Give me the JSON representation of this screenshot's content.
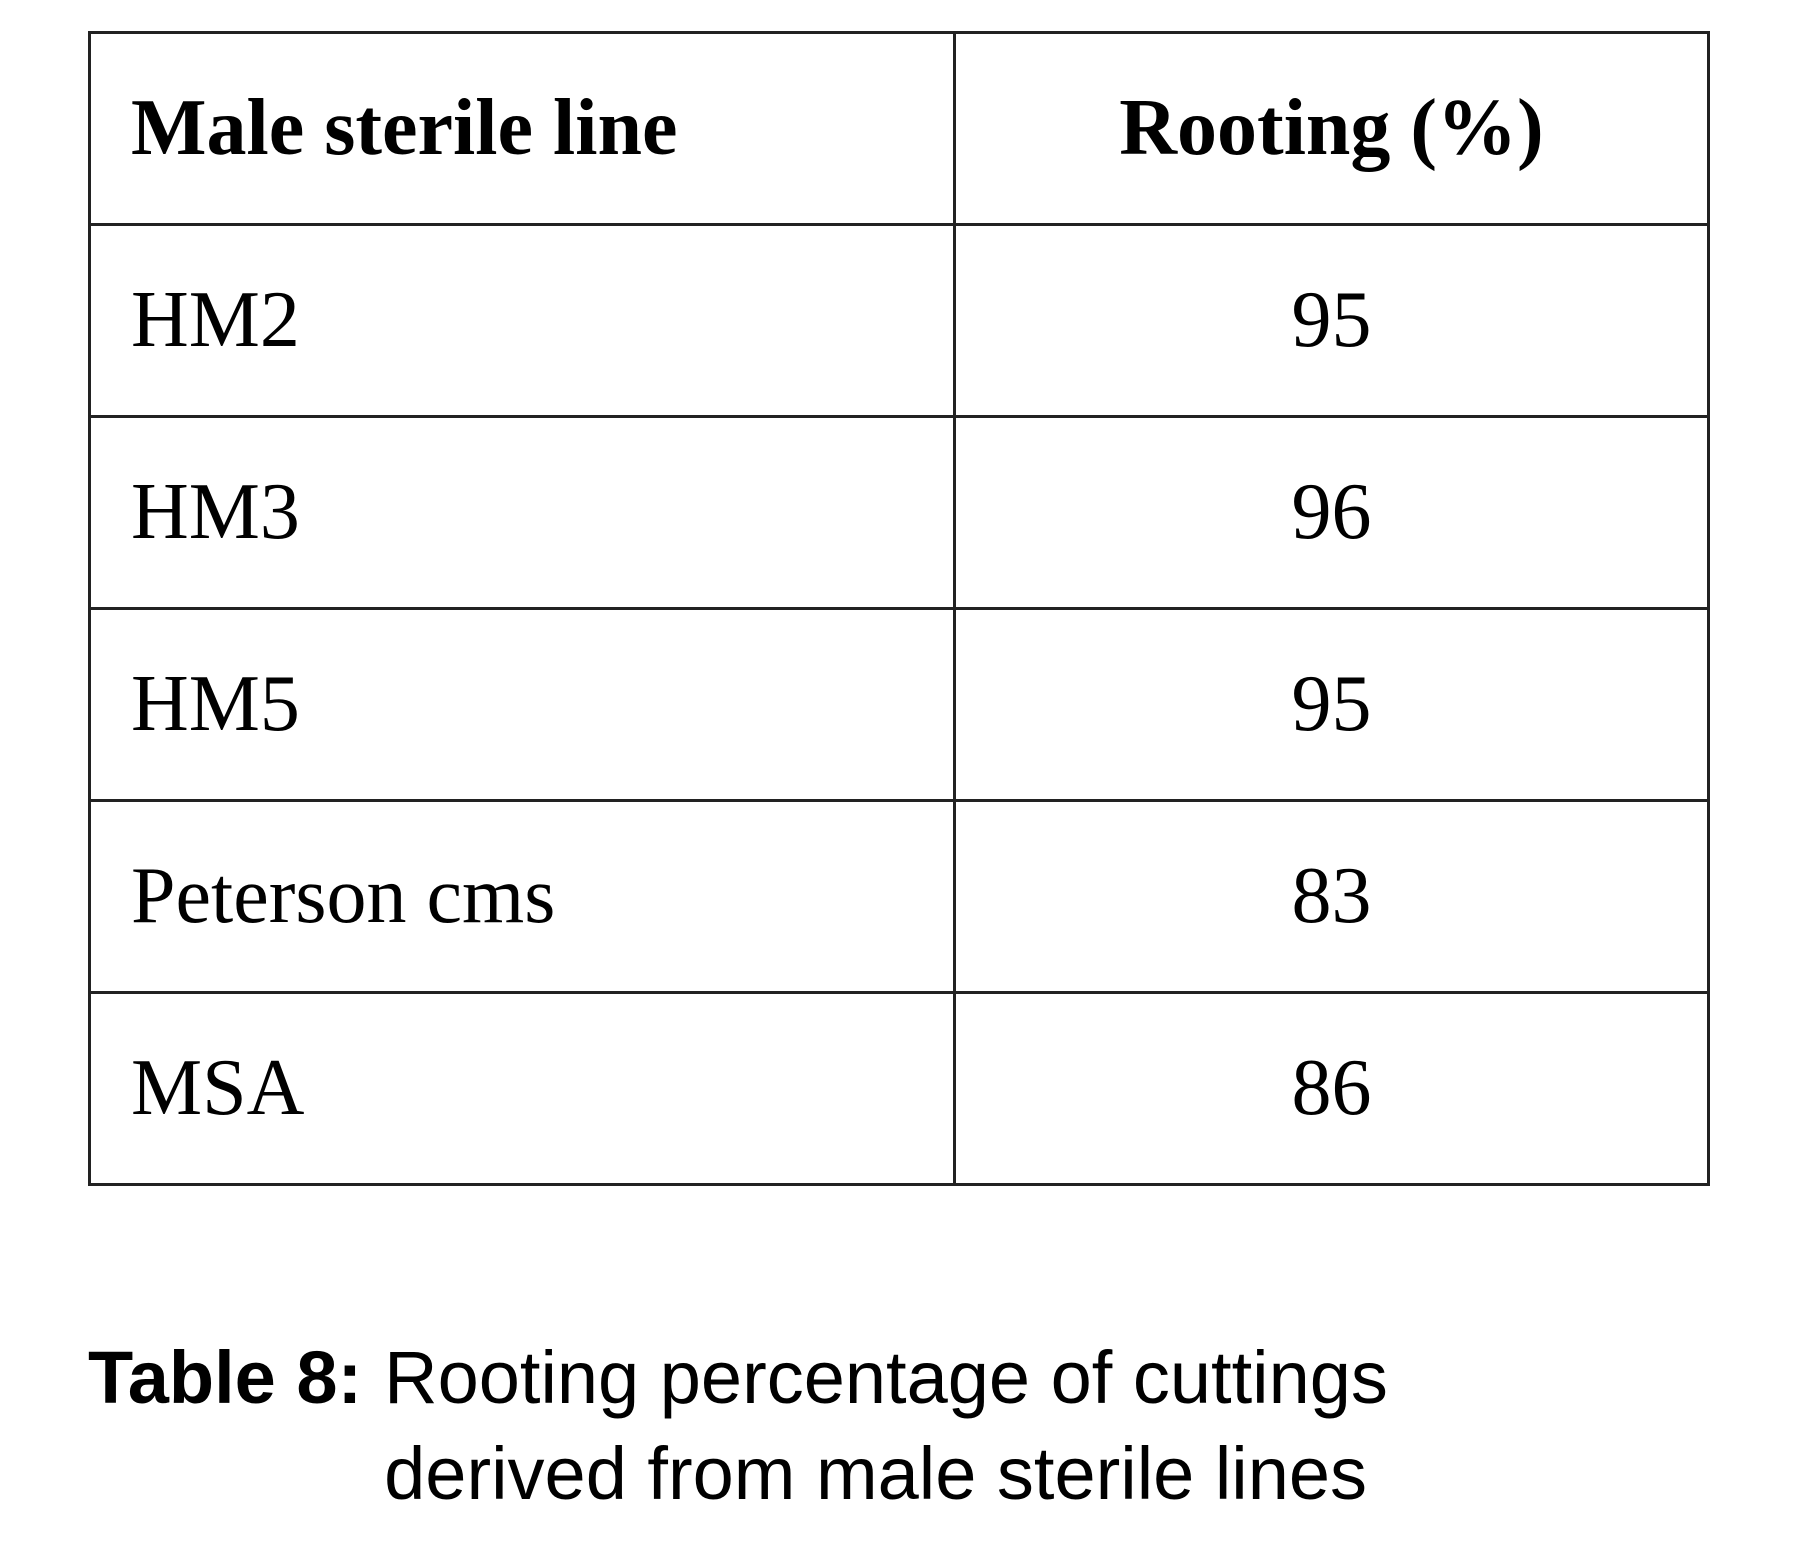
{
  "table": {
    "header": [
      "Male sterile line",
      "Rooting (%)"
    ],
    "rows": [
      [
        "HM2",
        95
      ],
      [
        "HM3",
        96
      ],
      [
        "HM5",
        95
      ],
      [
        "Peterson cms",
        83
      ],
      [
        "MSA",
        86
      ]
    ]
  },
  "caption": {
    "label": "Table 8:",
    "text": "Rooting percentage of cuttings derived from male sterile lines"
  }
}
